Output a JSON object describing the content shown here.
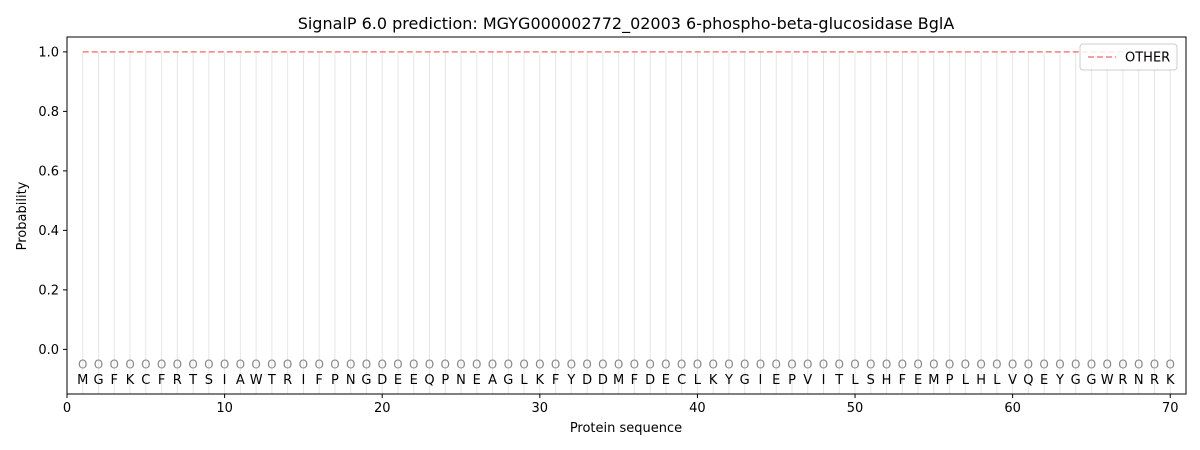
{
  "chart_data": {
    "type": "line",
    "title": "SignalP 6.0 prediction: MGYG000002772_02003 6-phospho-beta-glucosidase BglA",
    "xlabel": "Protein sequence",
    "ylabel": "Probability",
    "xlim": [
      0,
      71
    ],
    "ylim": [
      -0.15,
      1.05
    ],
    "xticks": [
      0,
      10,
      20,
      30,
      40,
      50,
      60,
      70
    ],
    "yticks": [
      0.0,
      0.2,
      0.4,
      0.6,
      0.8,
      1.0
    ],
    "ytick_labels": [
      "0.0",
      "0.2",
      "0.4",
      "0.6",
      "0.8",
      "1.0"
    ],
    "legend_position": "top-right",
    "sequence": [
      "M",
      "G",
      "F",
      "K",
      "C",
      "F",
      "R",
      "T",
      "S",
      "I",
      "A",
      "W",
      "T",
      "R",
      "I",
      "F",
      "P",
      "N",
      "G",
      "D",
      "E",
      "E",
      "Q",
      "P",
      "N",
      "E",
      "A",
      "G",
      "L",
      "K",
      "F",
      "Y",
      "D",
      "D",
      "M",
      "F",
      "D",
      "E",
      "C",
      "L",
      "K",
      "Y",
      "G",
      "I",
      "E",
      "P",
      "V",
      "I",
      "T",
      "L",
      "S",
      "H",
      "F",
      "E",
      "M",
      "P",
      "L",
      "H",
      "L",
      "V",
      "Q",
      "E",
      "Y",
      "G",
      "G",
      "W",
      "R",
      "N",
      "R",
      "K"
    ],
    "predicted_label": "O",
    "series": [
      {
        "name": "OTHER",
        "color": "#f08080",
        "style": "dashed",
        "x_start": 1,
        "x_end": 70,
        "value": 1.0
      }
    ]
  }
}
